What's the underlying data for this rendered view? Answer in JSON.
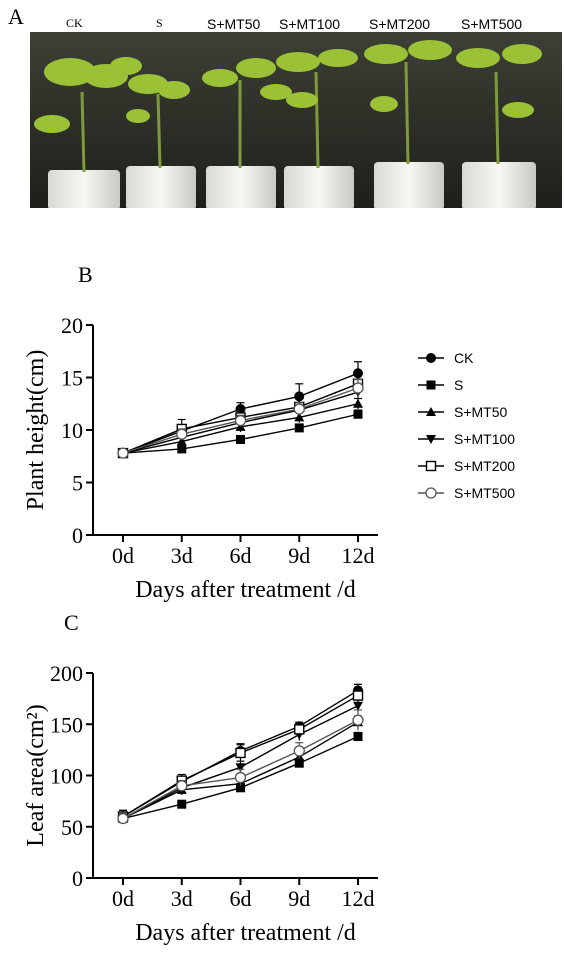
{
  "panels": {
    "a": "A",
    "b": "B",
    "c": "C"
  },
  "photo": {
    "labels": [
      "CK",
      "S",
      "S+MT50",
      "S+MT100",
      "S+MT200",
      "S+MT500"
    ]
  },
  "chart_data": [
    {
      "type": "line",
      "xlabel": "Days after treatment /d",
      "ylabel": "Plant height(cm)",
      "categories": [
        "0d",
        "3d",
        "6d",
        "9d",
        "12d"
      ],
      "ylim": [
        0,
        20
      ],
      "yticks": [
        0,
        5,
        10,
        15,
        20
      ],
      "legend_position": "right",
      "series": [
        {
          "name": "CK",
          "marker": "circle-filled",
          "values": [
            7.8,
            9.9,
            12.0,
            13.2,
            15.4
          ],
          "errors": [
            0.2,
            0.6,
            0.6,
            1.2,
            1.1
          ]
        },
        {
          "name": "S",
          "marker": "square-filled",
          "values": [
            7.8,
            8.2,
            9.1,
            10.2,
            11.5
          ],
          "errors": [
            0.2,
            0.3,
            0.3,
            0.3,
            0.4
          ]
        },
        {
          "name": "S+MT50",
          "marker": "triangle-up-filled",
          "values": [
            7.8,
            8.9,
            10.3,
            11.2,
            12.5
          ],
          "errors": [
            0.2,
            0.4,
            0.5,
            0.5,
            0.5
          ]
        },
        {
          "name": "S+MT100",
          "marker": "triangle-down-filled",
          "values": [
            7.8,
            9.3,
            10.7,
            11.9,
            13.6
          ],
          "errors": [
            0.2,
            0.4,
            0.5,
            0.6,
            0.7
          ]
        },
        {
          "name": "S+MT200",
          "marker": "square-open",
          "values": [
            7.8,
            10.1,
            11.2,
            12.2,
            14.4
          ],
          "errors": [
            0.2,
            0.9,
            0.6,
            0.8,
            1.0
          ]
        },
        {
          "name": "S+MT500",
          "marker": "circle-open",
          "values": [
            7.8,
            9.6,
            10.9,
            12.0,
            14.0
          ],
          "errors": [
            0.2,
            0.5,
            0.5,
            0.6,
            0.8
          ]
        }
      ]
    },
    {
      "type": "line",
      "xlabel": "Days after treatment /d",
      "ylabel": "Leaf area(cm²)",
      "categories": [
        "0d",
        "3d",
        "6d",
        "9d",
        "12d"
      ],
      "ylim": [
        0,
        200
      ],
      "yticks": [
        0,
        50,
        100,
        150,
        200
      ],
      "legend_position": "none",
      "series": [
        {
          "name": "CK",
          "marker": "circle-filled",
          "values": [
            60,
            94,
            124,
            148,
            183
          ],
          "errors": [
            6,
            5,
            7,
            4,
            6
          ]
        },
        {
          "name": "S",
          "marker": "square-filled",
          "values": [
            58,
            72,
            88,
            112,
            138
          ],
          "errors": [
            4,
            3,
            4,
            4,
            4
          ]
        },
        {
          "name": "S+MT50",
          "marker": "triangle-up-filled",
          "values": [
            58,
            86,
            92,
            118,
            152
          ],
          "errors": [
            5,
            5,
            5,
            5,
            6
          ]
        },
        {
          "name": "S+MT100",
          "marker": "triangle-down-filled",
          "values": [
            58,
            88,
            108,
            140,
            168
          ],
          "errors": [
            5,
            5,
            6,
            6,
            6
          ]
        },
        {
          "name": "S+MT200",
          "marker": "square-open",
          "values": [
            60,
            95,
            122,
            145,
            178
          ],
          "errors": [
            6,
            6,
            8,
            5,
            8
          ]
        },
        {
          "name": "S+MT500",
          "marker": "circle-open",
          "values": [
            58,
            90,
            98,
            124,
            154
          ],
          "errors": [
            5,
            5,
            8,
            8,
            10
          ]
        }
      ]
    }
  ]
}
